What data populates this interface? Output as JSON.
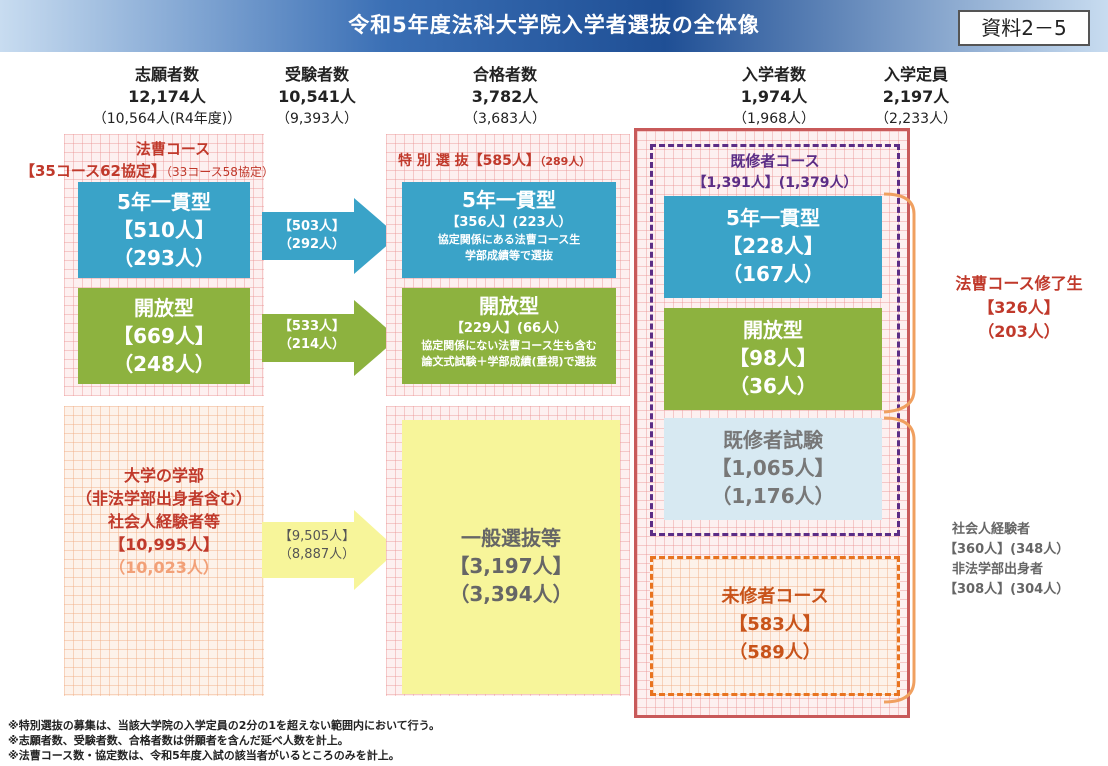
{
  "title": "令和5年度法科大学院入学者選抜の全体像",
  "doc_ref": "資料2－5",
  "headers": {
    "applicants": {
      "label": "志願者数",
      "value": "12,174人",
      "prev": "（10,564人(R4年度)）"
    },
    "examinees": {
      "label": "受験者数",
      "value": "10,541人",
      "prev": "（9,393人）"
    },
    "passers": {
      "label": "合格者数",
      "value": "3,782人",
      "prev": "（3,683人）"
    },
    "enrolled": {
      "label": "入学者数",
      "value": "1,974人",
      "prev": "（1,968人）"
    },
    "capacity": {
      "label": "入学定員",
      "value": "2,197人",
      "prev": "（2,233人）"
    }
  },
  "hoso": {
    "title": "法曹コース",
    "agreements": "【35コース62協定】",
    "agreements_prev": "（33コース58協定）",
    "five_year": {
      "label": "5年一貫型",
      "count": "【510人】",
      "prev": "（293人）"
    },
    "open": {
      "label": "開放型",
      "count": "【669人】",
      "prev": "（248人）"
    }
  },
  "undergrad": {
    "line1": "大学の学部",
    "line2": "（非法学部出身者含む）",
    "line3": "社会人経験者等",
    "count": "【10,995人】",
    "prev": "（10,023人）"
  },
  "arrows": {
    "five_year": {
      "count": "【503人】",
      "prev": "（292人）"
    },
    "open": {
      "count": "【533人】",
      "prev": "（214人）"
    },
    "general": {
      "count": "【9,505人】",
      "prev": "（8,887人）"
    }
  },
  "special": {
    "title": "特 別 選 抜【585人】",
    "prev": "（289人）",
    "five_year": {
      "label": "5年一貫型",
      "counts": "【356人】(223人）",
      "note1": "協定関係にある法曹コース生",
      "note2": "学部成績等で選抜"
    },
    "open": {
      "label": "開放型",
      "counts": "【229人】(66人）",
      "note1": "協定関係にない法曹コース生も含む",
      "note2": "論文式試験＋学部成績(重視)で選抜"
    }
  },
  "general_selection": {
    "label": "一般選抜等",
    "count": "【3,197人】",
    "prev": "（3,394人）"
  },
  "kishu": {
    "title": "既修者コース",
    "counts": "【1,391人】(1,379人）",
    "five_year": {
      "label": "5年一貫型",
      "count": "【228人】",
      "prev": "（167人）"
    },
    "open": {
      "label": "開放型",
      "count": "【98人】",
      "prev": "（36人）"
    },
    "exam": {
      "label": "既修者試験",
      "count": "【1,065人】",
      "prev": "（1,176人）"
    }
  },
  "mishu": {
    "label": "未修者コース",
    "count": "【583人】",
    "prev": "（589人）"
  },
  "hoso_graduates": {
    "label": "法曹コース修了生",
    "count": "【326人】",
    "prev": "（203人）"
  },
  "side_note": {
    "line1": "社会人経験者",
    "line2": "【360人】(348人）",
    "line3": "非法学部出身者",
    "line4": "【308人】(304人）"
  },
  "footnotes": [
    "※特別選抜の募集は、当該大学院の入学定員の2分の1を超えない範囲内において行う。",
    "※志願者数、受験者数、合格者数は併願者を含んだ延べ人数を計上。",
    "※法曹コース数・協定数は、令和5年度入試の該当者がいるところのみを計上。"
  ]
}
